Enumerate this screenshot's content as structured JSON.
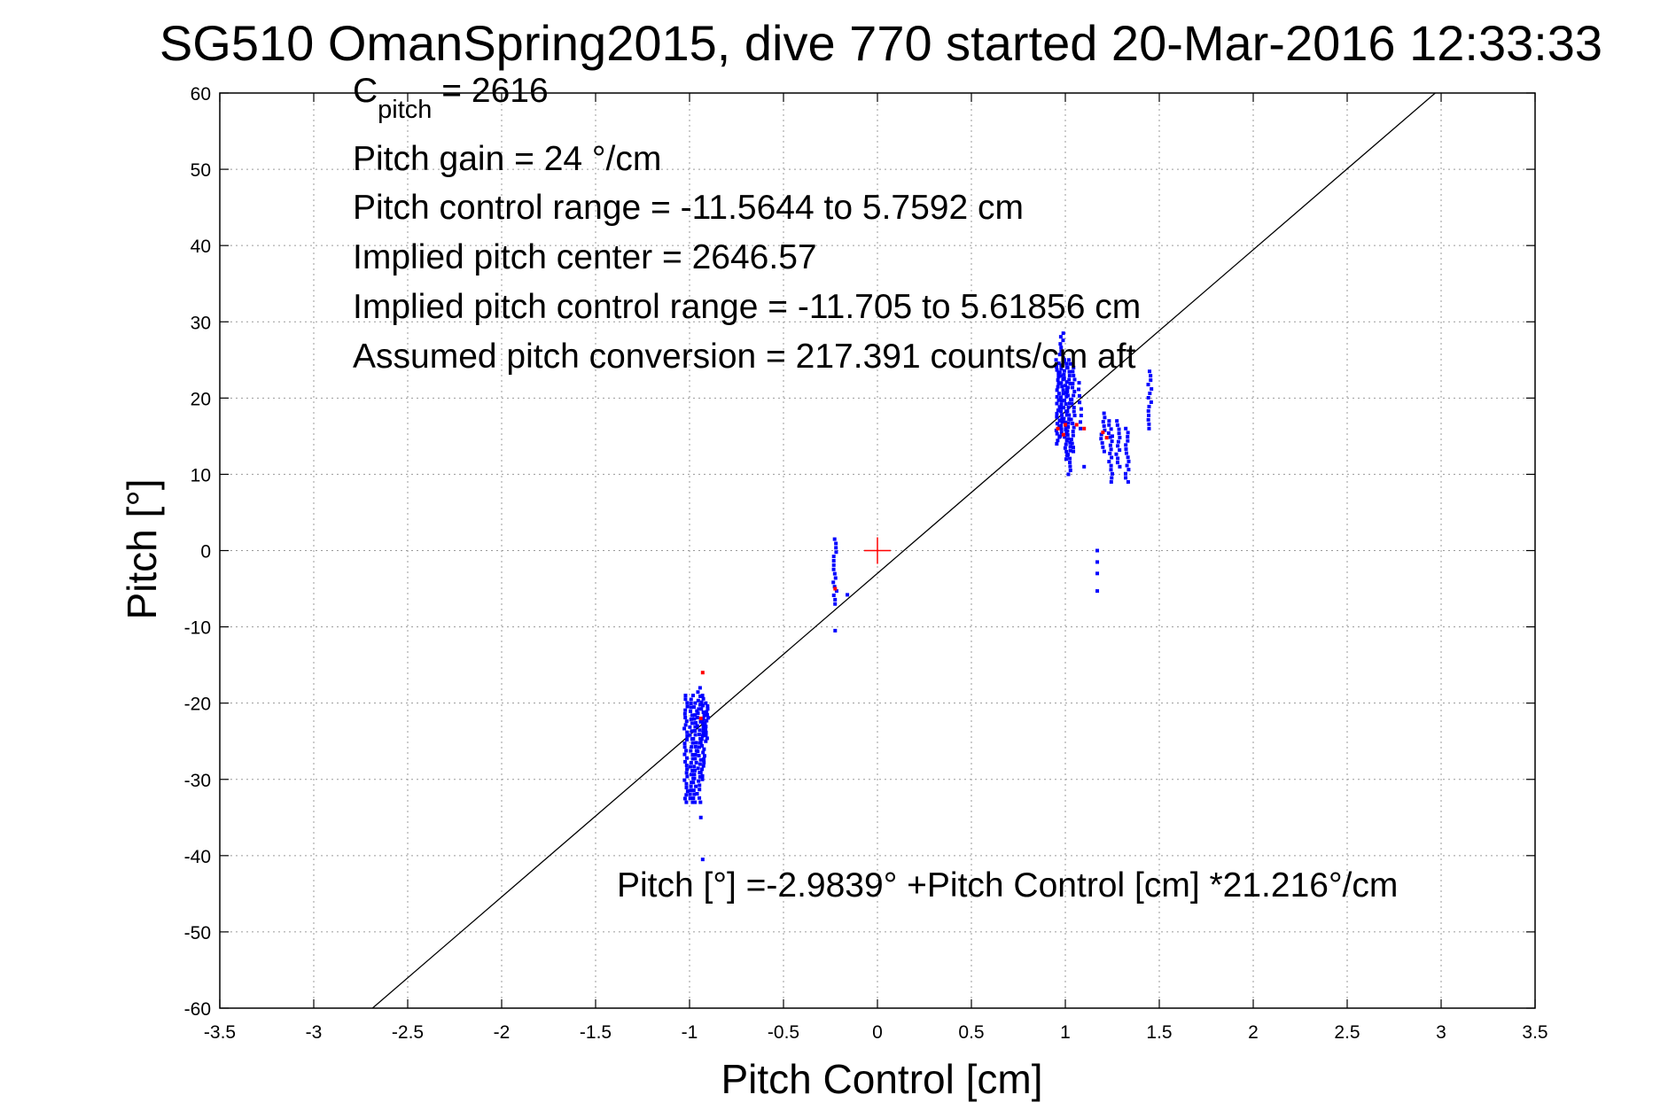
{
  "chart_data": {
    "type": "scatter",
    "title": "SG510 OmanSpring2015, dive 770 started 20-Mar-2016 12:33:33",
    "xlabel": "Pitch Control [cm]",
    "ylabel": "Pitch [°]",
    "xlim": [
      -3.5,
      3.5
    ],
    "ylim": [
      -60,
      60
    ],
    "xticks": [
      -3.5,
      -3,
      -2.5,
      -2,
      -1.5,
      -1,
      -0.5,
      0,
      0.5,
      1,
      1.5,
      2,
      2.5,
      3,
      3.5
    ],
    "xtick_labels": [
      "-3.5",
      "-3",
      "-2.5",
      "-2",
      "-1.5",
      "-1",
      "-0.5",
      "0",
      "0.5",
      "1",
      "1.5",
      "2",
      "2.5",
      "3",
      "3.5"
    ],
    "yticks": [
      -60,
      -50,
      -40,
      -30,
      -20,
      -10,
      0,
      10,
      20,
      30,
      40,
      50,
      60
    ],
    "ytick_labels": [
      "-60",
      "-50",
      "-40",
      "-30",
      "-20",
      "-10",
      "0",
      "10",
      "20",
      "30",
      "40",
      "50",
      "60"
    ],
    "grid": true,
    "annotations": {
      "c_pitch_main": "C",
      "c_pitch_sub": "pitch",
      "c_pitch_value": " = 2616",
      "pitch_gain": "Pitch gain = 24 °/cm",
      "pitch_control_range": "Pitch control range = -11.5644 to 5.7592 cm",
      "implied_center": "Implied pitch center = 2646.57",
      "implied_range": "Implied pitch control range = -11.705 to 5.61856 cm",
      "assumed_conversion": "Assumed pitch conversion = 217.391 counts/cm aft",
      "fit_equation": "Pitch [°] =-2.9839° +Pitch Control [cm] *21.216°/cm"
    },
    "fit_line": {
      "intercept": -2.9839,
      "slope": 21.216,
      "color": "#000000"
    },
    "center_marker": {
      "x": 0,
      "y": 0,
      "color": "#ff0000"
    },
    "series": [
      {
        "color": "#0000ff",
        "clusters": [
          {
            "x": -1.02,
            "ymin": -33,
            "ymax": -19,
            "n": 30
          },
          {
            "x": -0.99,
            "ymin": -33,
            "ymax": -19,
            "n": 28
          },
          {
            "x": -0.97,
            "ymin": -33,
            "ymax": -20,
            "n": 26
          },
          {
            "x": -0.95,
            "ymin": -33,
            "ymax": -18,
            "n": 28
          },
          {
            "x": -0.93,
            "ymin": -30,
            "ymax": -19,
            "n": 26
          },
          {
            "x": -0.91,
            "ymin": -25,
            "ymax": -20,
            "n": 14
          },
          {
            "x": -0.225,
            "ymin": -7,
            "ymax": 1.5,
            "n": 16
          },
          {
            "x": 0.96,
            "ymin": 14,
            "ymax": 25,
            "n": 26
          },
          {
            "x": 0.98,
            "ymin": 15,
            "ymax": 28.5,
            "n": 30
          },
          {
            "x": 1.0,
            "ymin": 12,
            "ymax": 25,
            "n": 28
          },
          {
            "x": 1.02,
            "ymin": 10,
            "ymax": 25,
            "n": 30
          },
          {
            "x": 1.04,
            "ymin": 13,
            "ymax": 24,
            "n": 22
          },
          {
            "x": 1.08,
            "ymin": 16,
            "ymax": 22,
            "n": 8
          },
          {
            "x": 1.2,
            "ymin": 13,
            "ymax": 18,
            "n": 10
          },
          {
            "x": 1.24,
            "ymin": 9,
            "ymax": 17,
            "n": 16
          },
          {
            "x": 1.28,
            "ymin": 11,
            "ymax": 17,
            "n": 12
          },
          {
            "x": 1.33,
            "ymin": 9,
            "ymax": 16,
            "n": 14
          },
          {
            "x": 1.45,
            "ymin": 16,
            "ymax": 23.5,
            "n": 14
          }
        ],
        "points": [
          {
            "x": -0.93,
            "y": -40.5
          },
          {
            "x": -0.94,
            "y": -35
          },
          {
            "x": -0.16,
            "y": -5.8
          },
          {
            "x": -0.225,
            "y": -10.5
          },
          {
            "x": 1.17,
            "y": -5.3
          },
          {
            "x": 1.17,
            "y": -3
          },
          {
            "x": 1.17,
            "y": -1.5
          },
          {
            "x": 1.17,
            "y": 0
          },
          {
            "x": 1.1,
            "y": 11
          },
          {
            "x": 0.97,
            "y": 17
          },
          {
            "x": 1.25,
            "y": 15
          }
        ]
      },
      {
        "color": "#ff0000",
        "points": [
          {
            "x": -0.93,
            "y": -16
          },
          {
            "x": -0.94,
            "y": -22
          },
          {
            "x": -0.225,
            "y": -5
          },
          {
            "x": 0.96,
            "y": 16
          },
          {
            "x": 1.0,
            "y": 16.5
          },
          {
            "x": 1.06,
            "y": 16.5
          },
          {
            "x": 1.1,
            "y": 16
          },
          {
            "x": 1.2,
            "y": 15.5
          },
          {
            "x": 1.22,
            "y": 14.8
          },
          {
            "x": 0.99,
            "y": 15.2
          }
        ]
      }
    ]
  }
}
